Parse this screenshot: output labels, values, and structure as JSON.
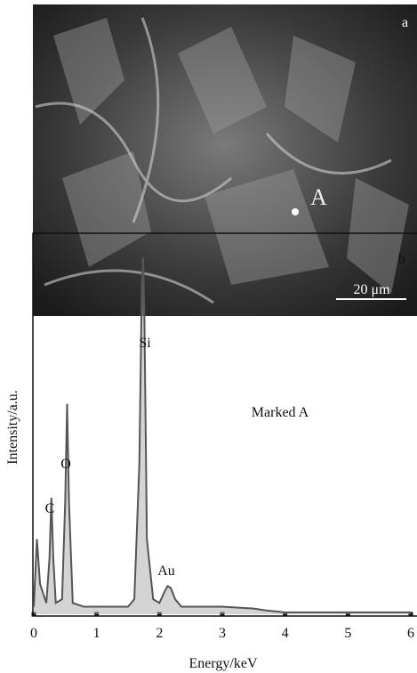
{
  "panel_a": {
    "label": "a",
    "point_label": "A",
    "scale_bar": "20 μm"
  },
  "chart_data": {
    "type": "line",
    "label": "b",
    "note": "Marked A",
    "xlabel": "Energy/keV",
    "ylabel": "Intensity/a.u.",
    "annotations": [
      "C",
      "O",
      "Si",
      "Au"
    ],
    "x": [
      0,
      0.05,
      0.1,
      0.2,
      0.25,
      0.28,
      0.31,
      0.35,
      0.45,
      0.5,
      0.53,
      0.56,
      0.62,
      0.8,
      1.2,
      1.5,
      1.6,
      1.68,
      1.72,
      1.74,
      1.76,
      1.8,
      1.9,
      2.0,
      2.08,
      2.13,
      2.18,
      2.25,
      2.35,
      2.6,
      3.0,
      3.5,
      3.7,
      4,
      5,
      6
    ],
    "values": [
      2,
      20,
      8,
      3,
      15,
      31,
      15,
      3,
      4,
      30,
      56,
      30,
      3,
      2,
      2,
      2,
      4,
      40,
      88,
      95,
      80,
      20,
      4,
      3,
      6,
      7.5,
      7,
      4,
      2,
      2,
      2,
      1.5,
      1,
      0.5,
      0.5,
      0.5
    ],
    "color": "#555555",
    "xlim": [
      0,
      6
    ],
    "xticks": [
      0,
      1,
      2,
      3,
      4,
      5,
      6
    ],
    "ylim": [
      0,
      100
    ]
  }
}
